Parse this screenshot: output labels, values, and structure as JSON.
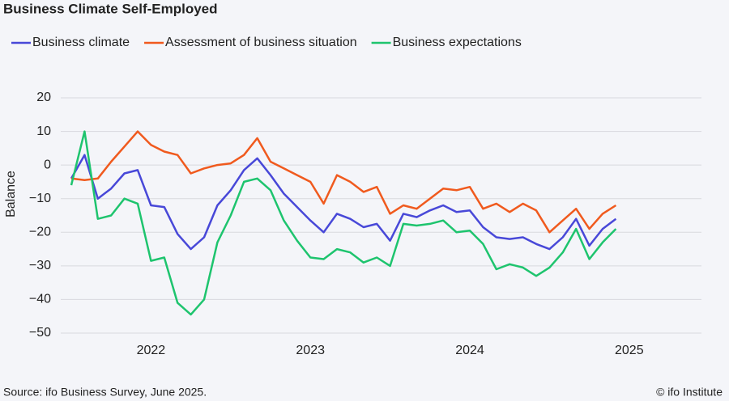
{
  "chart_data": {
    "type": "line",
    "title": "Business Climate Self-Employed",
    "ylabel": "Balance",
    "source": "Source: ifo Business Survey, June 2025.",
    "credit": "© ifo Institute",
    "categories": [
      null,
      null,
      null,
      null,
      null,
      null,
      "2022",
      null,
      null,
      null,
      null,
      null,
      null,
      null,
      null,
      null,
      null,
      null,
      "2023",
      null,
      null,
      null,
      null,
      null,
      null,
      null,
      null,
      null,
      null,
      null,
      "2024",
      null,
      null,
      null,
      null,
      null,
      null,
      null,
      null,
      null,
      null,
      null,
      "2025",
      null,
      null,
      null,
      null,
      null
    ],
    "series": [
      {
        "name": "Business climate",
        "color": "#4848d8",
        "values": [
          -4,
          3,
          -10,
          -7,
          -2.5,
          -1.5,
          -12,
          -12.5,
          -20.5,
          -25,
          -21.5,
          -12,
          -7.5,
          -1.5,
          2,
          -3,
          -8.5,
          -12.5,
          -16.5,
          -20,
          -14.5,
          -16,
          -18.5,
          -17.5,
          -22.5,
          -14.5,
          -15.5,
          -13.5,
          -12,
          -14,
          -13.5,
          -18.5,
          -21.5,
          -22,
          -21.5,
          -23.5,
          -25,
          -21.5,
          -16,
          -24,
          -19,
          -16,
          null,
          null,
          null,
          null,
          null,
          null
        ]
      },
      {
        "name": "Assessment of business situation",
        "color": "#f05a1e",
        "values": [
          -4,
          -4.5,
          -4,
          1,
          5.5,
          10,
          6,
          4,
          3,
          -2.5,
          -1,
          0,
          0.5,
          3,
          8,
          1,
          -1,
          -3,
          -5,
          -11.5,
          -3,
          -5,
          -8,
          -6.5,
          -14.5,
          -12,
          -13,
          -10,
          -7,
          -7.5,
          -6.5,
          -13,
          -11.5,
          -14,
          -11.5,
          -13.5,
          -20,
          -16.5,
          -13,
          -19,
          -14.5,
          -12,
          null,
          null,
          null,
          null,
          null,
          null
        ]
      },
      {
        "name": "Business expectations",
        "color": "#1ec46e",
        "values": [
          -6,
          10,
          -16,
          -15,
          -10,
          -11.5,
          -28.5,
          -27.5,
          -41,
          -44.5,
          -40,
          -23,
          -15,
          -5,
          -4,
          -7.5,
          -16.5,
          -22.5,
          -27.5,
          -28,
          -25,
          -26,
          -29,
          -27.5,
          -30,
          -17.5,
          -18,
          -17.5,
          -16.5,
          -20,
          -19.5,
          -23.5,
          -31,
          -29.5,
          -30.5,
          -33,
          -30.5,
          -26,
          -19,
          -28,
          -23,
          -19,
          null,
          null,
          null,
          null,
          null,
          null
        ]
      }
    ],
    "ylim": [
      -50,
      20
    ],
    "yticks": [
      {
        "value": -50,
        "label": "−50"
      },
      {
        "value": -40,
        "label": "−40"
      },
      {
        "value": -30,
        "label": "−30"
      },
      {
        "value": -20,
        "label": "−20"
      },
      {
        "value": -10,
        "label": "−10"
      },
      0,
      10,
      20
    ],
    "grid": true
  }
}
